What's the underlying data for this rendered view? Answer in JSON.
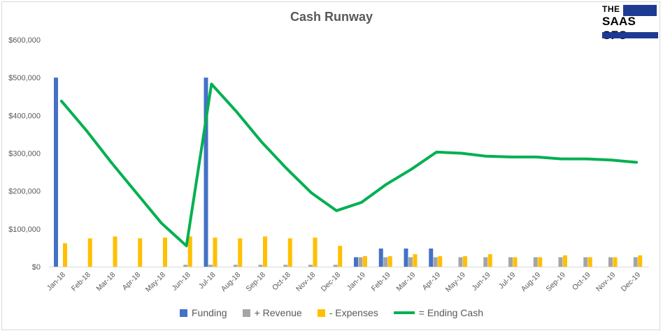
{
  "chart_data": {
    "type": "bar",
    "title": "Cash Runway",
    "categories": [
      "Jan-18",
      "Feb-18",
      "Mar-18",
      "Apr-18",
      "May-18",
      "Jun-18",
      "Jul-18",
      "Aug-18",
      "Sep-18",
      "Oct-18",
      "Nov-18",
      "Dec-18",
      "Jan-19",
      "Feb-19",
      "Mar-19",
      "Apr-19",
      "May-19",
      "Jun-19",
      "Jul-19",
      "Aug-19",
      "Sep-19",
      "Oct-19",
      "Nov-19",
      "Dec-19"
    ],
    "ylim": [
      0,
      600000
    ],
    "yticks": [
      "$0",
      "$100,000",
      "$200,000",
      "$300,000",
      "$400,000",
      "$500,000",
      "$600,000"
    ],
    "grid": false,
    "legend_position": "bottom",
    "series": [
      {
        "name": "Funding",
        "type": "bar",
        "color": "#4472c4",
        "values": [
          500000,
          0,
          0,
          0,
          0,
          0,
          500000,
          0,
          0,
          0,
          0,
          0,
          25000,
          48000,
          48000,
          48000,
          0,
          0,
          0,
          0,
          0,
          0,
          0,
          0
        ]
      },
      {
        "name": "+ Revenue",
        "type": "bar",
        "color": "#a5a5a5",
        "values": [
          0,
          0,
          0,
          0,
          0,
          5000,
          5000,
          5000,
          5000,
          5000,
          5000,
          5000,
          25000,
          25000,
          25000,
          25000,
          25000,
          25000,
          25000,
          25000,
          25000,
          25000,
          25000,
          25000
        ]
      },
      {
        "name": "- Expenses",
        "type": "bar",
        "color": "#ffc000",
        "values": [
          62000,
          75000,
          80000,
          75000,
          77000,
          80000,
          77000,
          75000,
          80000,
          75000,
          77000,
          55000,
          28000,
          28000,
          33000,
          28000,
          28000,
          33000,
          25000,
          25000,
          30000,
          25000,
          25000,
          30000
        ]
      },
      {
        "name": "= Ending Cash",
        "type": "line",
        "color": "#00b050",
        "values": [
          438000,
          360000,
          275000,
          195000,
          115000,
          55000,
          483000,
          410000,
          330000,
          260000,
          195000,
          148000,
          170000,
          218000,
          258000,
          303000,
          300000,
          292000,
          290000,
          290000,
          285000,
          285000,
          282000,
          276000
        ]
      }
    ]
  },
  "logo": {
    "top": "THE",
    "main": "SAAS CFO"
  }
}
